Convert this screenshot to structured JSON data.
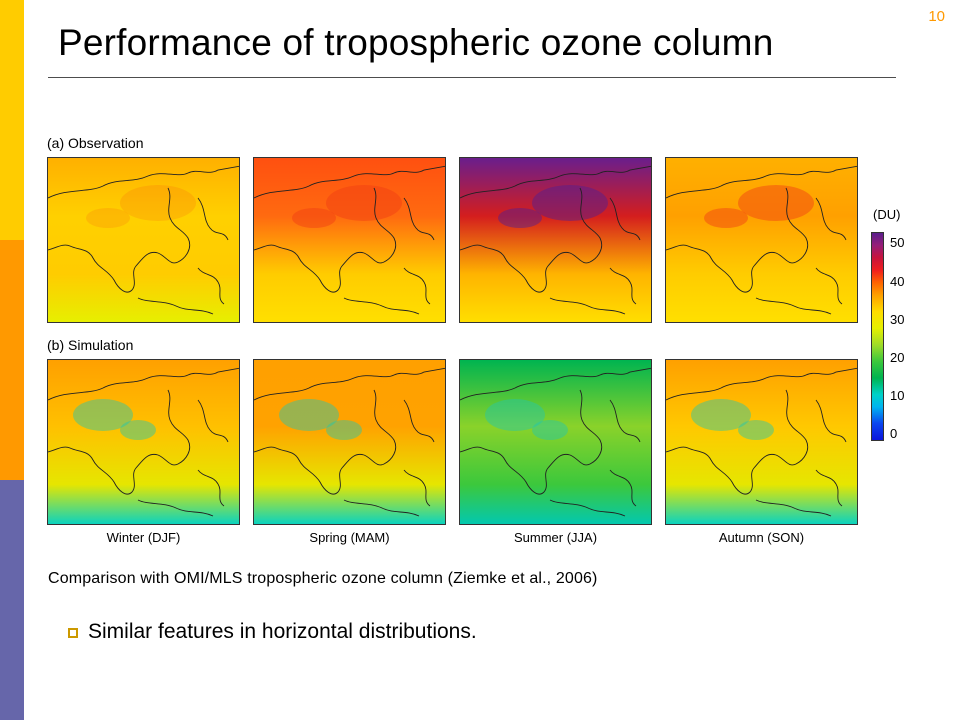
{
  "slide": {
    "page_number": "10",
    "title": "Performance of tropospheric ozone column"
  },
  "figure": {
    "rows": [
      {
        "label": "(a) Observation",
        "panels": [
          {
            "season": "Winter (DJF)",
            "dominant_color": "#ffd000"
          },
          {
            "season": "Spring (MAM)",
            "dominant_color": "#ff6a10"
          },
          {
            "season": "Summer (JJA)",
            "dominant_color": "#d41e1e"
          },
          {
            "season": "Autumn (SON)",
            "dominant_color": "#ffa000"
          }
        ]
      },
      {
        "label": "(b) Simulation",
        "panels": [
          {
            "season": "Winter (DJF)",
            "dominant_color": "#ffc000"
          },
          {
            "season": "Spring (MAM)",
            "dominant_color": "#ffa200"
          },
          {
            "season": "Summer (JJA)",
            "dominant_color": "#8ad22a"
          },
          {
            "season": "Autumn (SON)",
            "dominant_color": "#ffc800"
          }
        ]
      }
    ],
    "season_labels": [
      "Winter (DJF)",
      "Spring (MAM)",
      "Summer (JJA)",
      "Autumn (SON)"
    ],
    "colorbar": {
      "unit": "(DU)",
      "ticks": [
        "50",
        "40",
        "30",
        "20",
        "10",
        "0"
      ],
      "range": [
        0,
        50
      ]
    }
  },
  "caption": "Comparison with OMI/MLS tropospheric ozone column (Ziemke et al., 2006)",
  "bullets": [
    {
      "text": "Similar features in horizontal distributions."
    }
  ],
  "colors": {
    "bar_yellow": "#ffcc00",
    "bar_orange": "#ff9900",
    "bar_purple": "#6666aa",
    "bullet": "#cc9900",
    "page_number": "#ff9900"
  }
}
